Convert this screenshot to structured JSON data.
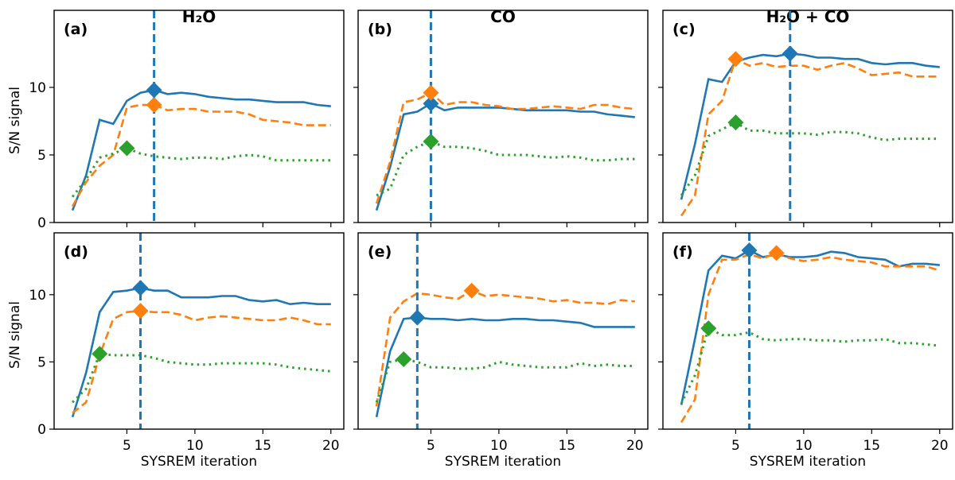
{
  "chart_data": {
    "type": "line",
    "ylabel": "S/N signal",
    "xlabel": "SYSREM iteration",
    "xlim": [
      -0.35,
      20.95
    ],
    "xticks": [
      5,
      10,
      15,
      20
    ],
    "yticks": [
      0,
      5,
      10
    ],
    "colors": {
      "blue": "#1f77b4",
      "orange": "#ff7f0e",
      "green": "#2ca02c"
    },
    "column_titles": [
      "H₂O",
      "CO",
      "H₂O + CO"
    ],
    "x": [
      1,
      2,
      3,
      4,
      5,
      6,
      7,
      8,
      9,
      10,
      11,
      12,
      13,
      14,
      15,
      16,
      17,
      18,
      19,
      20
    ],
    "panels": [
      {
        "label": "(a)",
        "row": 0,
        "col": 0,
        "ylim": [
          0,
          15.7
        ],
        "vline": 7,
        "series": [
          {
            "color": "blue",
            "style": "solid",
            "values": [
              0.9,
              3.5,
              7.6,
              7.3,
              9.0,
              9.6,
              9.8,
              9.5,
              9.6,
              9.5,
              9.3,
              9.2,
              9.1,
              9.1,
              9.0,
              8.9,
              8.9,
              8.9,
              8.7,
              8.6
            ],
            "marker": [
              7,
              9.8
            ]
          },
          {
            "color": "orange",
            "style": "dashed",
            "values": [
              1.2,
              3.0,
              4.2,
              5.0,
              8.5,
              8.7,
              8.7,
              8.3,
              8.4,
              8.4,
              8.2,
              8.2,
              8.2,
              8.0,
              7.6,
              7.5,
              7.4,
              7.2,
              7.2,
              7.2
            ],
            "marker": [
              7,
              8.7
            ]
          },
          {
            "color": "green",
            "style": "dotted",
            "values": [
              1.9,
              3.2,
              4.8,
              5.1,
              5.5,
              5.1,
              4.9,
              4.8,
              4.7,
              4.8,
              4.8,
              4.7,
              4.9,
              5.0,
              4.9,
              4.6,
              4.6,
              4.6,
              4.6,
              4.6
            ],
            "marker": [
              5,
              5.5
            ]
          }
        ]
      },
      {
        "label": "(b)",
        "row": 0,
        "col": 1,
        "ylim": [
          0,
          15.7
        ],
        "vline": 5,
        "series": [
          {
            "color": "blue",
            "style": "solid",
            "values": [
              0.9,
              4.1,
              8.0,
              8.2,
              8.8,
              8.3,
              8.5,
              8.5,
              8.5,
              8.5,
              8.4,
              8.3,
              8.3,
              8.3,
              8.3,
              8.2,
              8.2,
              8.0,
              7.9,
              7.8
            ],
            "marker": [
              5,
              8.8
            ]
          },
          {
            "color": "orange",
            "style": "dashed",
            "values": [
              1.4,
              4.5,
              8.9,
              9.1,
              9.6,
              8.7,
              8.9,
              8.9,
              8.7,
              8.6,
              8.4,
              8.4,
              8.5,
              8.6,
              8.5,
              8.4,
              8.7,
              8.7,
              8.5,
              8.4
            ],
            "marker": [
              5,
              9.6
            ]
          },
          {
            "color": "green",
            "style": "dotted",
            "values": [
              2.0,
              2.5,
              5.0,
              5.6,
              6.0,
              5.6,
              5.6,
              5.5,
              5.3,
              5.0,
              5.0,
              5.0,
              4.9,
              4.8,
              4.9,
              4.8,
              4.6,
              4.6,
              4.7,
              4.7
            ],
            "marker": [
              5,
              6.0
            ]
          }
        ]
      },
      {
        "label": "(c)",
        "row": 0,
        "col": 2,
        "ylim": [
          0,
          15.7
        ],
        "vline": 9,
        "series": [
          {
            "color": "blue",
            "style": "solid",
            "values": [
              1.7,
              5.8,
              10.6,
              10.4,
              11.9,
              12.2,
              12.4,
              12.3,
              12.5,
              12.4,
              12.2,
              12.2,
              12.1,
              12.1,
              11.8,
              11.7,
              11.8,
              11.8,
              11.6,
              11.5
            ],
            "marker": [
              9,
              12.5
            ]
          },
          {
            "color": "orange",
            "style": "dashed",
            "values": [
              0.5,
              2.0,
              8.0,
              9.0,
              12.1,
              11.6,
              11.8,
              11.5,
              11.6,
              11.6,
              11.3,
              11.6,
              11.8,
              11.4,
              10.9,
              11.0,
              11.1,
              10.8,
              10.8,
              10.8
            ],
            "marker": [
              5,
              12.1
            ]
          },
          {
            "color": "green",
            "style": "dotted",
            "values": [
              2.0,
              3.5,
              6.4,
              6.9,
              7.4,
              6.8,
              6.8,
              6.6,
              6.6,
              6.6,
              6.5,
              6.7,
              6.7,
              6.6,
              6.3,
              6.1,
              6.2,
              6.2,
              6.2,
              6.2
            ],
            "marker": [
              5,
              7.4
            ]
          }
        ]
      },
      {
        "label": "(d)",
        "row": 1,
        "col": 0,
        "ylim": [
          0,
          14.6
        ],
        "vline": 6,
        "series": [
          {
            "color": "blue",
            "style": "solid",
            "values": [
              0.9,
              4.2,
              8.7,
              10.2,
              10.3,
              10.5,
              10.3,
              10.3,
              9.8,
              9.8,
              9.8,
              9.9,
              9.9,
              9.6,
              9.5,
              9.6,
              9.3,
              9.4,
              9.3,
              9.3
            ],
            "marker": [
              6,
              10.5
            ]
          },
          {
            "color": "orange",
            "style": "dashed",
            "values": [
              1.2,
              2.0,
              5.5,
              8.2,
              8.7,
              8.8,
              8.7,
              8.7,
              8.5,
              8.1,
              8.3,
              8.4,
              8.3,
              8.2,
              8.1,
              8.1,
              8.3,
              8.1,
              7.8,
              7.8
            ],
            "marker": [
              6,
              8.8
            ]
          },
          {
            "color": "green",
            "style": "dotted",
            "values": [
              2.0,
              3.0,
              5.6,
              5.5,
              5.5,
              5.5,
              5.3,
              5.0,
              4.9,
              4.8,
              4.8,
              4.9,
              4.9,
              4.9,
              4.9,
              4.8,
              4.6,
              4.5,
              4.4,
              4.3
            ],
            "marker": [
              3,
              5.6
            ]
          }
        ]
      },
      {
        "label": "(e)",
        "row": 1,
        "col": 1,
        "ylim": [
          0,
          14.6
        ],
        "vline": 4,
        "series": [
          {
            "color": "blue",
            "style": "solid",
            "values": [
              0.9,
              5.8,
              8.2,
              8.3,
              8.2,
              8.2,
              8.1,
              8.2,
              8.1,
              8.1,
              8.2,
              8.2,
              8.1,
              8.1,
              8.0,
              7.9,
              7.6,
              7.6,
              7.6,
              7.6
            ],
            "marker": [
              4,
              8.3
            ]
          },
          {
            "color": "orange",
            "style": "dashed",
            "values": [
              1.7,
              8.3,
              9.5,
              10.1,
              10.0,
              9.8,
              9.7,
              10.3,
              9.9,
              10.0,
              9.9,
              9.8,
              9.7,
              9.5,
              9.6,
              9.4,
              9.4,
              9.3,
              9.6,
              9.5
            ],
            "marker": [
              8,
              10.3
            ]
          },
          {
            "color": "green",
            "style": "dotted",
            "values": [
              2.0,
              5.0,
              5.2,
              5.0,
              4.6,
              4.6,
              4.5,
              4.5,
              4.6,
              5.0,
              4.8,
              4.7,
              4.6,
              4.6,
              4.6,
              4.9,
              4.7,
              4.8,
              4.7,
              4.7
            ],
            "marker": [
              3,
              5.2
            ]
          }
        ]
      },
      {
        "label": "(f)",
        "row": 1,
        "col": 2,
        "ylim": [
          0,
          14.6
        ],
        "vline": 6,
        "series": [
          {
            "color": "blue",
            "style": "solid",
            "values": [
              1.8,
              6.7,
              11.8,
              12.9,
              12.7,
              13.3,
              12.8,
              13.0,
              12.8,
              12.8,
              12.9,
              13.2,
              13.1,
              12.8,
              12.7,
              12.6,
              12.1,
              12.3,
              12.3,
              12.2
            ],
            "marker": [
              6,
              13.3
            ]
          },
          {
            "color": "orange",
            "style": "dashed",
            "values": [
              0.5,
              2.2,
              10.0,
              12.6,
              12.6,
              13.0,
              12.7,
              13.1,
              12.7,
              12.5,
              12.6,
              12.8,
              12.6,
              12.5,
              12.4,
              12.1,
              12.1,
              12.1,
              12.1,
              11.8
            ],
            "marker": [
              8,
              13.1
            ]
          },
          {
            "color": "green",
            "style": "dotted",
            "values": [
              1.9,
              4.0,
              7.5,
              7.0,
              7.0,
              7.2,
              6.7,
              6.6,
              6.7,
              6.7,
              6.6,
              6.6,
              6.5,
              6.6,
              6.6,
              6.7,
              6.4,
              6.4,
              6.3,
              6.2
            ],
            "marker": [
              3,
              7.5
            ]
          }
        ]
      }
    ]
  }
}
